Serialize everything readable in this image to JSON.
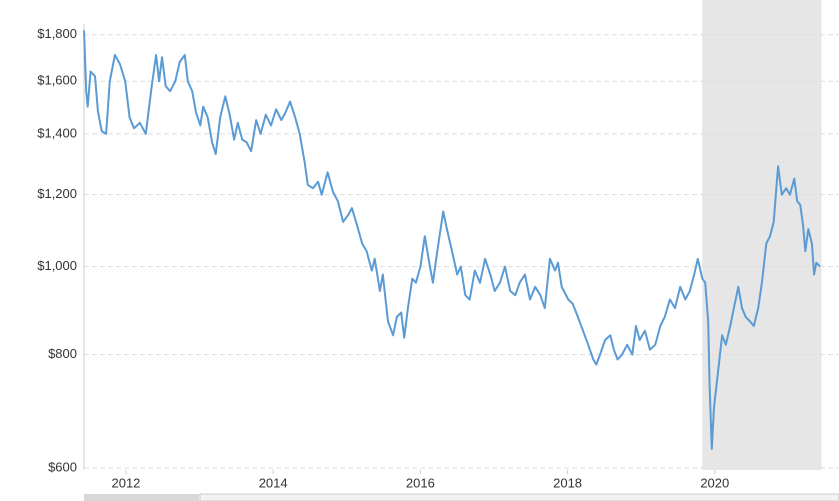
{
  "chart_data": {
    "type": "line",
    "ylog": true,
    "grid": true,
    "grid_style": "dashed",
    "xlim": [
      2011.43,
      2021.45
    ],
    "xticks": [
      2012,
      2014,
      2016,
      2018,
      2020
    ],
    "ylim": [
      600,
      1850
    ],
    "yticks": [
      {
        "value": 600,
        "label": "$600"
      },
      {
        "value": 800,
        "label": "$800"
      },
      {
        "value": 1000,
        "label": "$1,000"
      },
      {
        "value": 1200,
        "label": "$1,200"
      },
      {
        "value": 1400,
        "label": "$1,400"
      },
      {
        "value": 1600,
        "label": "$1,600"
      },
      {
        "value": 1800,
        "label": "$1,800"
      }
    ],
    "shaded_region": [
      2019.83,
      2021.45
    ],
    "shade_color": "#e6e6e6",
    "x": [
      2011.43,
      2011.46,
      2011.48,
      2011.52,
      2011.58,
      2011.62,
      2011.67,
      2011.73,
      2011.78,
      2011.85,
      2011.92,
      2011.99,
      2012.05,
      2012.11,
      2012.19,
      2012.27,
      2012.35,
      2012.41,
      2012.45,
      2012.49,
      2012.54,
      2012.6,
      2012.67,
      2012.73,
      2012.8,
      2012.84,
      2012.9,
      2012.95,
      2013.01,
      2013.05,
      2013.11,
      2013.17,
      2013.22,
      2013.28,
      2013.35,
      2013.41,
      2013.47,
      2013.52,
      2013.58,
      2013.64,
      2013.7,
      2013.77,
      2013.83,
      2013.9,
      2013.97,
      2014.04,
      2014.11,
      2014.17,
      2014.23,
      2014.3,
      2014.36,
      2014.43,
      2014.47,
      2014.54,
      2014.61,
      2014.66,
      2014.74,
      2014.81,
      2014.88,
      2014.95,
      2015.02,
      2015.07,
      2015.14,
      2015.21,
      2015.27,
      2015.34,
      2015.38,
      2015.45,
      2015.49,
      2015.56,
      2015.63,
      2015.68,
      2015.74,
      2015.78,
      2015.83,
      2015.89,
      2015.94,
      2016.0,
      2016.06,
      2016.13,
      2016.17,
      2016.23,
      2016.31,
      2016.36,
      2016.43,
      2016.5,
      2016.55,
      2016.61,
      2016.67,
      2016.74,
      2016.81,
      2016.88,
      2016.95,
      2017.01,
      2017.08,
      2017.15,
      2017.22,
      2017.29,
      2017.35,
      2017.42,
      2017.49,
      2017.56,
      2017.63,
      2017.69,
      2017.76,
      2017.83,
      2017.87,
      2017.92,
      2018.01,
      2018.07,
      2018.14,
      2018.21,
      2018.28,
      2018.35,
      2018.39,
      2018.44,
      2018.51,
      2018.58,
      2018.63,
      2018.68,
      2018.74,
      2018.81,
      2018.88,
      2018.93,
      2018.98,
      2019.05,
      2019.12,
      2019.19,
      2019.26,
      2019.32,
      2019.39,
      2019.46,
      2019.53,
      2019.6,
      2019.66,
      2019.72,
      2019.77,
      2019.83,
      2019.87,
      2019.91,
      2019.93,
      2019.96,
      2019.99,
      2020.04,
      2020.1,
      2020.15,
      2020.21,
      2020.26,
      2020.32,
      2020.37,
      2020.42,
      2020.48,
      2020.53,
      2020.59,
      2020.64,
      2020.7,
      2020.75,
      2020.8,
      2020.86,
      2020.91,
      2020.97,
      2021.02,
      2021.08,
      2021.12,
      2021.16,
      2021.2,
      2021.23,
      2021.27,
      2021.32,
      2021.35,
      2021.38,
      2021.43
    ],
    "series": [
      {
        "color": "#5b9bd5",
        "values": [
          1820,
          1560,
          1500,
          1640,
          1620,
          1480,
          1410,
          1400,
          1600,
          1710,
          1670,
          1600,
          1460,
          1420,
          1440,
          1400,
          1580,
          1710,
          1600,
          1700,
          1580,
          1560,
          1600,
          1680,
          1710,
          1600,
          1560,
          1480,
          1430,
          1500,
          1460,
          1370,
          1330,
          1460,
          1540,
          1470,
          1380,
          1440,
          1380,
          1370,
          1340,
          1450,
          1400,
          1470,
          1430,
          1490,
          1450,
          1480,
          1520,
          1460,
          1400,
          1300,
          1230,
          1220,
          1240,
          1200,
          1270,
          1210,
          1180,
          1120,
          1140,
          1160,
          1110,
          1060,
          1040,
          990,
          1020,
          940,
          980,
          870,
          840,
          880,
          890,
          835,
          900,
          970,
          960,
          1000,
          1080,
          1000,
          960,
          1040,
          1150,
          1100,
          1040,
          980,
          1000,
          930,
          920,
          990,
          960,
          1020,
          980,
          940,
          960,
          1000,
          940,
          930,
          960,
          980,
          920,
          950,
          930,
          900,
          1020,
          990,
          1010,
          950,
          920,
          910,
          880,
          850,
          820,
          790,
          780,
          800,
          830,
          840,
          810,
          790,
          800,
          820,
          800,
          860,
          830,
          850,
          810,
          820,
          860,
          880,
          920,
          900,
          950,
          920,
          940,
          980,
          1020,
          970,
          960,
          870,
          740,
          630,
          700,
          760,
          840,
          820,
          860,
          900,
          950,
          900,
          880,
          870,
          860,
          900,
          960,
          1060,
          1080,
          1120,
          1290,
          1200,
          1220,
          1200,
          1250,
          1180,
          1170,
          1110,
          1040,
          1100,
          1060,
          980,
          1010,
          1000
        ]
      }
    ]
  }
}
